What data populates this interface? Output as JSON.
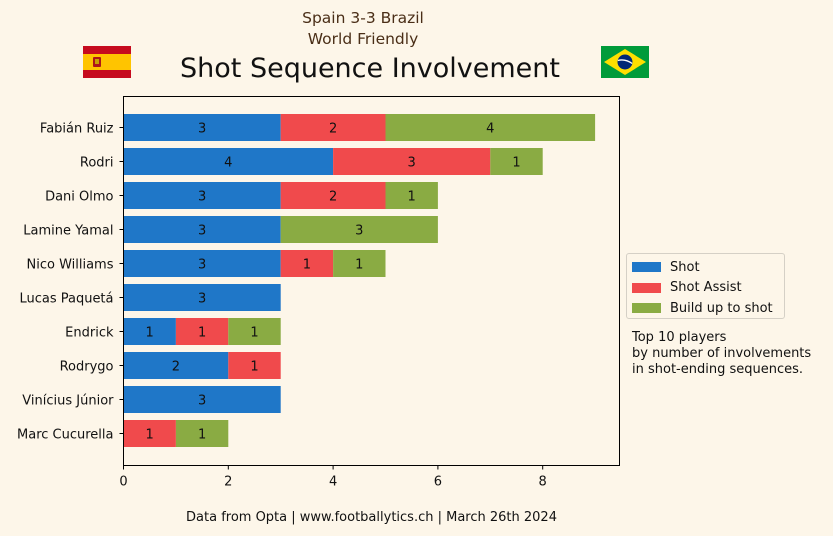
{
  "header": {
    "match": "Spain 3-3 Brazil",
    "competition": "World Friendly",
    "title": "Shot Sequence Involvement"
  },
  "footer": "Data from Opta | www.footballytics.ch | March 26th 2024",
  "note": [
    "Top 10 players",
    "by number of involvements",
    "in shot-ending sequences."
  ],
  "flags": {
    "left": "spain-flag",
    "right": "brazil-flag"
  },
  "colors": {
    "shot": "#1f77c8",
    "assist": "#f04a4c",
    "buildup": "#8aab43",
    "background": "#fdf6e9"
  },
  "chart_data": {
    "type": "bar",
    "orientation": "horizontal",
    "stacked": true,
    "categories": [
      "Fabián Ruiz",
      "Rodri",
      "Dani Olmo",
      "Lamine Yamal",
      "Nico Williams",
      "Lucas Paquetá",
      "Endrick",
      "Rodrygo",
      "Vinícius Júnior",
      "Marc Cucurella"
    ],
    "series": [
      {
        "name": "Shot",
        "color": "#1f77c8",
        "values": [
          3,
          4,
          3,
          3,
          3,
          3,
          1,
          2,
          3,
          0
        ]
      },
      {
        "name": "Shot Assist",
        "color": "#f04a4c",
        "values": [
          2,
          3,
          2,
          0,
          1,
          0,
          1,
          1,
          0,
          1
        ]
      },
      {
        "name": "Build up to shot",
        "color": "#8aab43",
        "values": [
          4,
          1,
          1,
          3,
          1,
          0,
          1,
          0,
          0,
          1
        ]
      }
    ],
    "xlim": [
      0,
      9.45
    ],
    "xticks": [
      0,
      2,
      4,
      6,
      8
    ],
    "legend_position": "right"
  }
}
